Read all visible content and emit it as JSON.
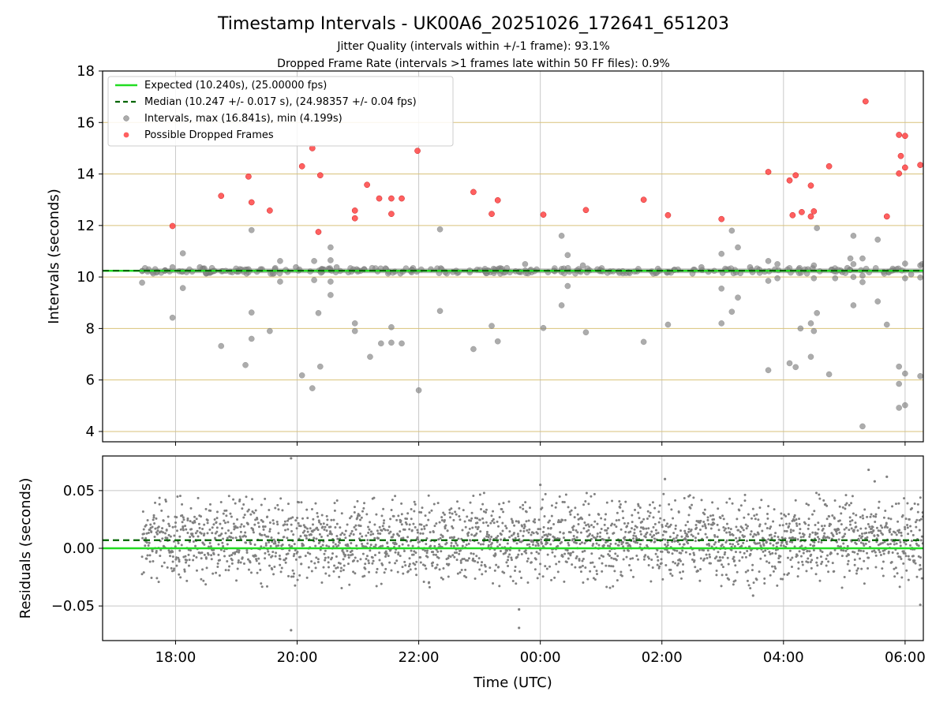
{
  "chart_data": {
    "type": "scatter",
    "title": "Timestamp Intervals - UK00A6_20251026_172641_651203",
    "subtitle_lines": [
      "Jitter Quality (intervals within +/-1 frame): 93.1%",
      "Dropped Frame Rate (intervals >1 frames late within 50 FF files): 0.9%"
    ],
    "xlabel": "Time (UTC)",
    "x_hours_range": [
      16.8,
      30.3
    ],
    "x_tick_hours": [
      18,
      20,
      22,
      24,
      26,
      28,
      30
    ],
    "x_tick_labels": [
      "18:00",
      "20:00",
      "22:00",
      "00:00",
      "02:00",
      "04:00",
      "06:00"
    ],
    "top": {
      "ylabel": "Intervals (seconds)",
      "ylim": [
        3.6,
        18
      ],
      "yticks": [
        4,
        6,
        8,
        10,
        12,
        14,
        16,
        18
      ],
      "expected": 10.24,
      "median": 10.247,
      "band_half_width": 0.04,
      "legend": [
        "Expected (10.240s), (25.00000 fps)",
        "Median (10.247 +/- 0.017 s), (24.98357 +/- 0.04 fps)",
        "Intervals, max (16.841s), min (4.199s)",
        "Possible Dropped Frames"
      ],
      "intervals": [
        [
          17.45,
          9.78
        ],
        [
          17.95,
          8.42
        ],
        [
          17.95,
          10.38
        ],
        [
          18.12,
          10.92
        ],
        [
          18.12,
          9.57
        ],
        [
          18.4,
          10.38
        ],
        [
          18.75,
          7.32
        ],
        [
          19.15,
          6.58
        ],
        [
          19.25,
          7.6
        ],
        [
          19.25,
          8.62
        ],
        [
          19.25,
          11.82
        ],
        [
          19.2,
          10.3
        ],
        [
          19.4,
          10.3
        ],
        [
          19.55,
          7.9
        ],
        [
          19.72,
          9.82
        ],
        [
          19.72,
          10.62
        ],
        [
          19.98,
          10.38
        ],
        [
          20.08,
          6.18
        ],
        [
          20.25,
          5.68
        ],
        [
          20.28,
          10.62
        ],
        [
          20.28,
          9.88
        ],
        [
          20.35,
          8.6
        ],
        [
          20.38,
          6.52
        ],
        [
          20.42,
          10.3
        ],
        [
          20.55,
          11.15
        ],
        [
          20.55,
          10.65
        ],
        [
          20.55,
          9.82
        ],
        [
          20.55,
          9.3
        ],
        [
          20.65,
          10.38
        ],
        [
          20.95,
          8.2
        ],
        [
          20.95,
          7.9
        ],
        [
          20.98,
          10.3
        ],
        [
          21.1,
          10.3
        ],
        [
          21.2,
          6.9
        ],
        [
          21.38,
          7.42
        ],
        [
          21.55,
          8.05
        ],
        [
          21.55,
          7.45
        ],
        [
          21.72,
          7.42
        ],
        [
          22.0,
          5.6
        ],
        [
          22.2,
          10.3
        ],
        [
          22.35,
          8.68
        ],
        [
          22.35,
          11.85
        ],
        [
          22.9,
          7.2
        ],
        [
          23.2,
          8.1
        ],
        [
          23.3,
          7.5
        ],
        [
          23.65,
          10.2
        ],
        [
          23.75,
          10.5
        ],
        [
          24.05,
          8.02
        ],
        [
          24.35,
          11.6
        ],
        [
          24.35,
          8.9
        ],
        [
          24.45,
          10.85
        ],
        [
          24.45,
          9.65
        ],
        [
          24.7,
          10.45
        ],
        [
          24.75,
          7.85
        ],
        [
          25.7,
          7.48
        ],
        [
          26.1,
          8.15
        ],
        [
          26.65,
          10.38
        ],
        [
          26.98,
          10.9
        ],
        [
          26.98,
          9.55
        ],
        [
          26.98,
          8.2
        ],
        [
          27.15,
          11.8
        ],
        [
          27.15,
          8.65
        ],
        [
          27.25,
          11.15
        ],
        [
          27.25,
          9.2
        ],
        [
          27.45,
          10.38
        ],
        [
          27.75,
          10.62
        ],
        [
          27.75,
          9.85
        ],
        [
          27.75,
          6.38
        ],
        [
          27.9,
          10.5
        ],
        [
          27.9,
          9.95
        ],
        [
          28.1,
          6.65
        ],
        [
          28.2,
          6.5
        ],
        [
          28.25,
          10.3
        ],
        [
          28.28,
          8.0
        ],
        [
          28.4,
          10.3
        ],
        [
          28.45,
          6.9
        ],
        [
          28.45,
          8.2
        ],
        [
          28.5,
          7.9
        ],
        [
          28.5,
          10.45
        ],
        [
          28.5,
          9.95
        ],
        [
          28.55,
          8.6
        ],
        [
          28.55,
          11.9
        ],
        [
          28.75,
          6.22
        ],
        [
          28.85,
          9.95
        ],
        [
          29.05,
          10.35
        ],
        [
          29.1,
          10.72
        ],
        [
          29.15,
          11.6
        ],
        [
          29.15,
          10.5
        ],
        [
          29.15,
          10.0
        ],
        [
          29.15,
          8.9
        ],
        [
          29.3,
          9.8
        ],
        [
          29.3,
          10.72
        ],
        [
          29.3,
          10.05
        ],
        [
          29.3,
          4.2
        ],
        [
          29.55,
          11.45
        ],
        [
          29.55,
          9.05
        ],
        [
          29.7,
          8.15
        ],
        [
          29.9,
          6.52
        ],
        [
          29.9,
          5.85
        ],
        [
          29.9,
          4.92
        ],
        [
          30.0,
          5.02
        ],
        [
          30.0,
          6.25
        ],
        [
          30.0,
          10.52
        ],
        [
          30.0,
          9.95
        ],
        [
          30.1,
          10.1
        ],
        [
          30.25,
          10.45
        ],
        [
          30.25,
          6.15
        ],
        [
          30.25,
          9.98
        ],
        [
          30.28,
          10.5
        ]
      ],
      "dropped": [
        [
          17.95,
          11.98
        ],
        [
          18.75,
          13.15
        ],
        [
          19.2,
          13.9
        ],
        [
          19.25,
          12.9
        ],
        [
          19.55,
          12.58
        ],
        [
          20.08,
          14.3
        ],
        [
          20.25,
          15.0
        ],
        [
          20.38,
          13.95
        ],
        [
          20.35,
          11.75
        ],
        [
          20.95,
          12.28
        ],
        [
          20.95,
          12.58
        ],
        [
          21.15,
          13.58
        ],
        [
          21.35,
          13.05
        ],
        [
          21.55,
          13.05
        ],
        [
          21.55,
          12.45
        ],
        [
          21.72,
          13.05
        ],
        [
          21.98,
          14.9
        ],
        [
          22.9,
          13.3
        ],
        [
          23.2,
          12.45
        ],
        [
          23.3,
          12.98
        ],
        [
          24.05,
          12.42
        ],
        [
          24.75,
          12.6
        ],
        [
          25.7,
          13.0
        ],
        [
          26.1,
          12.4
        ],
        [
          26.98,
          12.25
        ],
        [
          27.75,
          14.08
        ],
        [
          28.1,
          13.75
        ],
        [
          28.15,
          12.4
        ],
        [
          28.2,
          13.95
        ],
        [
          28.3,
          12.52
        ],
        [
          28.45,
          12.35
        ],
        [
          28.45,
          13.55
        ],
        [
          28.5,
          12.55
        ],
        [
          28.75,
          14.3
        ],
        [
          29.35,
          16.82
        ],
        [
          29.7,
          12.35
        ],
        [
          29.9,
          15.52
        ],
        [
          30.0,
          15.48
        ],
        [
          29.93,
          14.7
        ],
        [
          29.9,
          14.02
        ],
        [
          30.0,
          14.25
        ],
        [
          30.25,
          14.35
        ]
      ]
    },
    "bottom": {
      "ylabel": "Residuals (seconds)",
      "ylim": [
        -0.08,
        0.08
      ],
      "yticks": [
        -0.05,
        0.0,
        0.05
      ],
      "ytick_labels": [
        "−0.05",
        "0.00",
        "0.05"
      ],
      "expected": 0.0,
      "median": 0.007,
      "residual_range_hours": [
        17.45,
        30.3
      ],
      "residual_std": 0.017,
      "outliers": [
        [
          19.9,
          0.078
        ],
        [
          19.9,
          -0.071
        ],
        [
          23.65,
          -0.053
        ],
        [
          23.65,
          -0.069
        ],
        [
          24.0,
          0.055
        ],
        [
          26.05,
          0.06
        ],
        [
          29.4,
          0.068
        ],
        [
          29.5,
          0.058
        ],
        [
          29.7,
          0.062
        ],
        [
          30.25,
          -0.049
        ],
        [
          27.5,
          -0.041
        ]
      ]
    },
    "colors": {
      "expected": "#22dd22",
      "median": "#006400",
      "intervals": "#808080",
      "dropped": "#ff4444",
      "hgrid_top": "#d9c27a",
      "grid": "#c8c8c8"
    }
  }
}
